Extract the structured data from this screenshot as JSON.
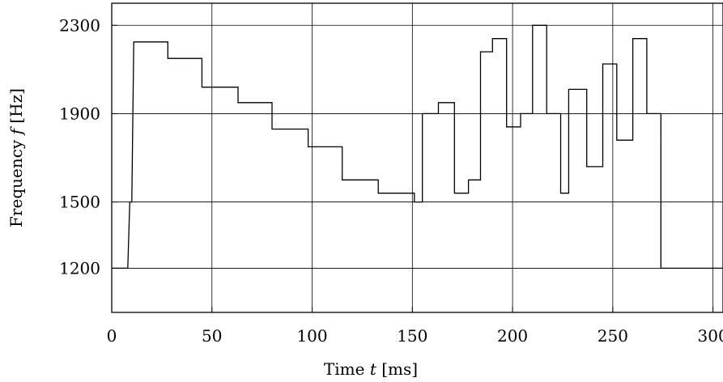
{
  "chart_data": {
    "type": "line",
    "xlabel_text": "Time",
    "xlabel_var": "t",
    "xlabel_unit": "[ms]",
    "ylabel_text": "Frequency",
    "ylabel_var": "f",
    "ylabel_unit": "[Hz]",
    "xlim": [
      0,
      305
    ],
    "ylim": [
      1000,
      2400
    ],
    "xticks": [
      0,
      50,
      100,
      150,
      200,
      250,
      300
    ],
    "yticks": [
      1200,
      1500,
      1900,
      2300
    ],
    "grid": true,
    "legend": "none",
    "series": [
      {
        "x": [
          0,
          8,
          9,
          10,
          11,
          12,
          28,
          28,
          45,
          45,
          63,
          63,
          80,
          80,
          98,
          98,
          115,
          115,
          133,
          133,
          151,
          151,
          155,
          155,
          163,
          163,
          171,
          171,
          178,
          178,
          184,
          184,
          190,
          190,
          197,
          197,
          204,
          204,
          210,
          210,
          217,
          217,
          224,
          224,
          228,
          228,
          237,
          237,
          245,
          245,
          252,
          252,
          260,
          260,
          267,
          267,
          274,
          274,
          282,
          282,
          289,
          289,
          297,
          297,
          305
        ],
        "y": [
          1200,
          1200,
          1500,
          1500,
          2225,
          2225,
          2225,
          2150,
          2150,
          2020,
          2020,
          1950,
          1950,
          1830,
          1830,
          1750,
          1750,
          1600,
          1600,
          1540,
          1540,
          1500,
          1500,
          1900,
          1900,
          1950,
          1950,
          1540,
          1540,
          1600,
          1600,
          2180,
          2180,
          2240,
          2240,
          1840,
          1840,
          1900,
          1900,
          2300,
          2300,
          1900,
          1900,
          1540,
          1540,
          2010,
          2010,
          1660,
          1660,
          2125,
          2125,
          1780,
          1780,
          2240,
          2240,
          1900,
          1900,
          1200,
          1200,
          1200,
          1200,
          1200,
          1200,
          1200,
          1200
        ]
      }
    ]
  }
}
